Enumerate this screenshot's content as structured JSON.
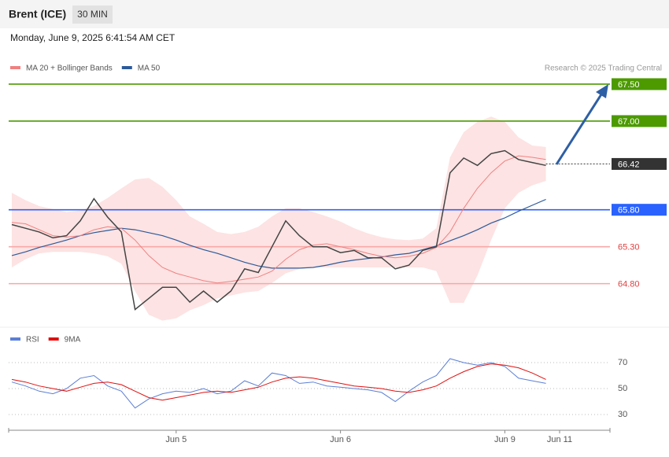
{
  "header": {
    "title": "Brent (ICE)",
    "interval": "30 MIN",
    "timestamp": "Monday, June 9, 2025 6:41:54 AM CET"
  },
  "chart_data": [
    {
      "type": "line",
      "source": "Research © 2025 Trading Central",
      "ylim": [
        64.2,
        68.0
      ],
      "band_color": "#fde3e3",
      "price": {
        "color": "#444444",
        "values": [
          65.6,
          65.55,
          65.5,
          65.42,
          65.45,
          65.65,
          65.95,
          65.7,
          65.5,
          64.45,
          64.6,
          64.75,
          64.75,
          64.55,
          64.7,
          64.55,
          64.7,
          65.0,
          64.95,
          65.3,
          65.65,
          65.45,
          65.3,
          65.3,
          65.22,
          65.25,
          65.15,
          65.15,
          65.0,
          65.05,
          65.25,
          65.3,
          66.3,
          66.5,
          66.4,
          66.56,
          66.6,
          66.48,
          66.44,
          66.4,
          null
        ]
      },
      "series": [
        {
          "name": "MA 20 + Bollinger Bands",
          "color": "#f08080",
          "values": [
            65.63,
            65.61,
            65.53,
            65.45,
            65.43,
            65.45,
            65.53,
            65.57,
            65.55,
            65.39,
            65.18,
            65.02,
            64.94,
            64.89,
            64.84,
            64.81,
            64.83,
            64.86,
            64.89,
            64.97,
            65.13,
            65.26,
            65.32,
            65.34,
            65.3,
            65.26,
            65.21,
            65.17,
            65.15,
            65.17,
            65.21,
            65.29,
            65.5,
            65.82,
            66.09,
            66.3,
            66.46,
            66.53,
            66.51,
            66.48,
            null
          ],
          "upper": [
            66.03,
            65.93,
            65.85,
            65.81,
            65.77,
            65.79,
            65.85,
            65.96,
            66.09,
            66.21,
            66.23,
            66.11,
            65.93,
            65.71,
            65.61,
            65.5,
            65.47,
            65.5,
            65.57,
            65.71,
            65.82,
            65.82,
            65.77,
            65.71,
            65.64,
            65.55,
            65.48,
            65.43,
            65.4,
            65.39,
            65.41,
            65.55,
            66.51,
            66.85,
            66.99,
            67.06,
            66.99,
            66.78,
            66.67,
            66.65,
            null
          ],
          "lower": [
            65.02,
            65.13,
            65.21,
            65.23,
            65.23,
            65.23,
            65.21,
            65.17,
            65.07,
            64.7,
            64.38,
            64.3,
            64.33,
            64.44,
            64.51,
            64.6,
            64.64,
            64.68,
            64.7,
            64.81,
            64.94,
            65.0,
            65.02,
            65.02,
            65.02,
            65.02,
            65.02,
            65.02,
            65.02,
            65.02,
            65.02,
            64.97,
            64.54,
            64.54,
            64.91,
            65.39,
            65.82,
            66.03,
            66.13,
            66.19,
            null
          ]
        },
        {
          "name": "MA 50",
          "color": "#2d5a9a",
          "values": [
            65.18,
            65.23,
            65.29,
            65.34,
            65.39,
            65.45,
            65.49,
            65.52,
            65.55,
            65.53,
            65.49,
            65.45,
            65.39,
            65.32,
            65.26,
            65.21,
            65.15,
            65.09,
            65.04,
            65.01,
            65.01,
            65.01,
            65.02,
            65.05,
            65.09,
            65.12,
            65.14,
            65.16,
            65.19,
            65.21,
            65.26,
            65.31,
            65.38,
            65.45,
            65.53,
            65.62,
            65.69,
            65.78,
            65.86,
            65.94,
            null
          ]
        }
      ],
      "levels": [
        {
          "value": 67.5,
          "label": "67.50",
          "color": "#4c9a00",
          "style": "box",
          "line": "solid"
        },
        {
          "value": 67.0,
          "label": "67.00",
          "color": "#4c9a00",
          "style": "box",
          "line": "solid"
        },
        {
          "value": 66.42,
          "label": "66.42",
          "color": "#333333",
          "style": "box",
          "line": "dotted"
        },
        {
          "value": 65.8,
          "label": "65.80",
          "color": "#2962ff",
          "style": "box",
          "line": "solid"
        },
        {
          "value": 65.3,
          "label": "65.30",
          "color": "#e04040",
          "style": "text",
          "line": "solid"
        },
        {
          "value": 64.8,
          "label": "64.80",
          "color": "#e04040",
          "style": "text",
          "line": "solid"
        }
      ]
    },
    {
      "type": "line",
      "ylim": [
        22,
        83
      ],
      "yticks": [
        30,
        50,
        70
      ],
      "grid": true,
      "categories": [
        null,
        null,
        null,
        null,
        null,
        null,
        null,
        null,
        null,
        null,
        null,
        null,
        "Jun 5",
        null,
        null,
        null,
        null,
        null,
        null,
        null,
        null,
        null,
        null,
        null,
        "Jun 6",
        null,
        null,
        null,
        null,
        null,
        null,
        null,
        null,
        null,
        null,
        null,
        "Jun 9",
        null,
        null,
        null,
        "Jun 11"
      ],
      "series": [
        {
          "name": "RSI",
          "color": "#5b7fd6",
          "values": [
            55,
            52,
            48,
            46,
            50,
            58,
            60,
            52,
            48,
            35,
            42,
            46,
            48,
            47,
            50,
            46,
            48,
            56,
            52,
            62,
            60,
            54,
            55,
            52,
            51,
            50,
            49,
            47,
            40,
            48,
            55,
            60,
            73,
            70,
            68,
            70,
            67,
            58,
            56,
            54,
            null
          ]
        },
        {
          "name": "9MA",
          "color": "#e01010",
          "values": [
            57,
            55,
            52,
            50,
            48,
            51,
            54,
            55,
            53,
            48,
            43,
            41,
            43,
            45,
            47,
            48,
            47,
            49,
            51,
            55,
            58,
            59,
            58,
            56,
            54,
            52,
            51,
            50,
            48,
            47,
            49,
            52,
            58,
            63,
            67,
            69,
            68,
            66,
            62,
            57,
            null
          ]
        }
      ]
    }
  ]
}
